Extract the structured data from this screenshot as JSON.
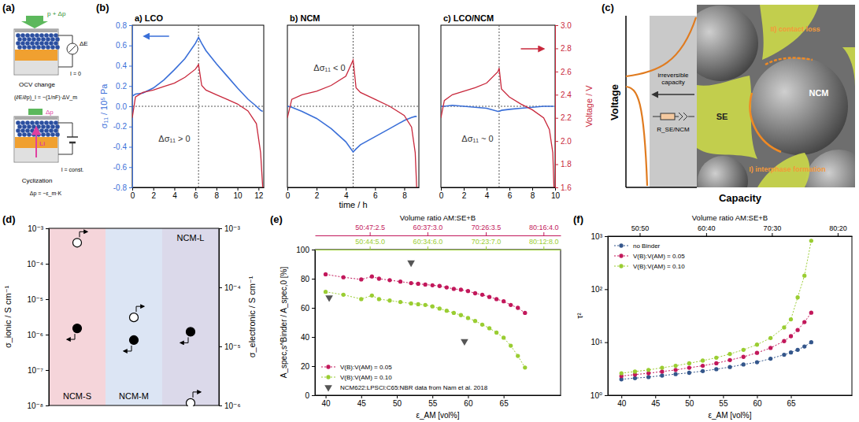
{
  "panels": {
    "a": {
      "panel_label": "(a)",
      "pressure": "p + Δp",
      "voltage": "ΔE",
      "current_open": "I = 0",
      "ocv": "OCV change",
      "formula": "(∂E/∂p)_I = −(1/nF)·ΔV_m",
      "delta_p": "Δp",
      "li": "Li",
      "current_const": "I = const.",
      "cyclization": "Cyclization",
      "pressure_change": "Δp = −ε_m·K"
    },
    "c": {
      "panel_label": "(c)",
      "ylabel": "Voltage",
      "xlabel": "Capacity",
      "band_label": "irreversible capacity",
      "resistor": "R_SE/NCM",
      "contact": "II) contact loss",
      "interphase": "I) interphase formation",
      "ncm": "NCM",
      "se": "SE"
    }
  },
  "chart_data": [
    {
      "type": "line",
      "panel_label": "(b)",
      "title": "a) LCO",
      "ylabel": "σ₁₁ / 10⁵ Pa",
      "annotation": "Δσ₁₁ > 0",
      "x": [
        0,
        0.3,
        1,
        2,
        3,
        4,
        5,
        6,
        6.3,
        6.6,
        7,
        8,
        9,
        10,
        11,
        11.8,
        12.2,
        12.4
      ],
      "series": [
        {
          "color": "#3a6fd8",
          "values": [
            0.1,
            0.12,
            0.13,
            0.18,
            0.26,
            0.36,
            0.47,
            0.62,
            0.68,
            0.62,
            0.55,
            0.42,
            0.3,
            0.18,
            0.07,
            0.0,
            -0.04,
            -0.05
          ]
        },
        {
          "color": "#c8283c",
          "axis": "y2",
          "values": [
            2.2,
            2.38,
            2.42,
            2.44,
            2.47,
            2.5,
            2.55,
            2.62,
            2.66,
            2.48,
            2.44,
            2.4,
            2.36,
            2.32,
            2.26,
            2.15,
            1.9,
            1.6
          ]
        }
      ],
      "xlim": [
        0,
        12.5
      ],
      "xticks": [
        0,
        2,
        4,
        6,
        8,
        10,
        12
      ],
      "ylim": [
        -0.8,
        0.8
      ],
      "yticks": [
        -0.8,
        -0.6,
        -0.4,
        -0.2,
        {
          "value": 0,
          "label": "0.0"
        },
        0.2,
        0.4,
        0.6,
        0.8
      ],
      "y2lim": [
        1.6,
        3.0
      ],
      "vline": 6.3,
      "hline": 0
    },
    {
      "type": "line",
      "title": "b) NCM",
      "xlabel": "time / h",
      "annotation": "Δσ₁₁ < 0",
      "x": [
        0,
        0.3,
        1,
        2,
        3,
        4,
        4.5,
        4.7,
        5,
        6,
        7,
        8,
        8.5,
        8.75,
        8.85
      ],
      "series": [
        {
          "color": "#3a6fd8",
          "values": [
            0,
            -0.01,
            -0.05,
            -0.12,
            -0.22,
            -0.35,
            -0.45,
            -0.42,
            -0.38,
            -0.3,
            -0.22,
            -0.14,
            -0.11,
            -0.1,
            -0.1
          ]
        },
        {
          "color": "#c8283c",
          "axis": "y2",
          "values": [
            2.2,
            2.36,
            2.4,
            2.43,
            2.48,
            2.56,
            2.7,
            2.46,
            2.42,
            2.36,
            2.3,
            2.22,
            2.12,
            1.9,
            1.6
          ]
        }
      ],
      "xlim": [
        0,
        9
      ],
      "xticks": [
        0,
        2,
        4,
        6,
        8
      ],
      "ylim": [
        -0.8,
        0.8
      ],
      "y2lim": [
        1.6,
        3.0
      ],
      "vline": 4.5,
      "hline": 0
    },
    {
      "type": "line",
      "title": "c) LCO/NCM",
      "y2label": "Voltage / V",
      "annotation": "Δσ₁₁ ~ 0",
      "x": [
        0,
        0.3,
        1,
        2,
        3,
        4,
        5,
        5.1,
        5.3,
        6,
        7,
        8,
        9,
        9.5,
        9.8,
        9.9
      ],
      "series": [
        {
          "color": "#3a6fd8",
          "values": [
            0,
            0,
            0.01,
            0,
            -0.01,
            -0.02,
            -0.05,
            -0.05,
            -0.04,
            -0.03,
            -0.02,
            -0.01,
            0,
            0,
            0,
            0
          ]
        },
        {
          "color": "#c8283c",
          "axis": "y2",
          "values": [
            2.2,
            2.35,
            2.4,
            2.43,
            2.46,
            2.5,
            2.6,
            2.63,
            2.45,
            2.38,
            2.32,
            2.27,
            2.2,
            2.1,
            1.9,
            1.6
          ]
        }
      ],
      "xlim": [
        0,
        10
      ],
      "xticks": [
        0,
        2,
        4,
        6,
        8,
        10
      ],
      "ylim": [
        -0.8,
        0.8
      ],
      "y2lim": [
        1.6,
        3.0
      ],
      "y2ticks": [
        1.6,
        1.8,
        {
          "value": 2.0,
          "label": "2.0"
        },
        2.2,
        2.4,
        2.6,
        2.8,
        {
          "value": 3.0,
          "label": "3.0"
        }
      ],
      "vline": 5.1,
      "hline": 0
    },
    {
      "type": "scatter",
      "panel_label": "(d)",
      "log": "y",
      "ylabel": "σ_ionic / S cm⁻¹",
      "y2label": "σ_electronic / S cm⁻¹",
      "categories": [
        "NCM-S",
        "NCM-M",
        "NCM-L"
      ],
      "series": [
        {
          "marker": "filled-circle",
          "values": [
            1.5e-06,
            7e-07,
            1.2e-06
          ]
        },
        {
          "marker": "open-circle",
          "axis": "y2",
          "values": [
            0.00057,
            3.1e-05,
            1.1e-06
          ]
        }
      ],
      "ylim": [
        1e-08,
        0.001
      ],
      "yticks": [
        {
          "value": 1e-08,
          "label": "10⁻⁸"
        },
        {
          "value": 1e-07,
          "label": "10⁻⁷"
        },
        {
          "value": 1e-06,
          "label": "10⁻⁶"
        },
        {
          "value": 1e-05,
          "label": "10⁻⁵"
        },
        {
          "value": 0.0001,
          "label": "10⁻⁴"
        },
        {
          "value": 0.001,
          "label": "10⁻³"
        }
      ],
      "y2lim": [
        1e-06,
        0.001
      ],
      "y2ticks": [
        {
          "value": 1e-06,
          "label": "10⁻⁶"
        },
        {
          "value": 1e-05,
          "label": "10⁻⁵"
        },
        {
          "value": 0.0001,
          "label": "10⁻⁴"
        },
        {
          "value": 0.001,
          "label": "10⁻³"
        }
      ]
    },
    {
      "type": "line",
      "panel_label": "(e)",
      "marker": "circle",
      "legend": "lower left",
      "xlabel": "ε_AM [vol%]",
      "ylabel": "A_spec,s^Binder / A_spec,0 [%]",
      "top_axis_title": "Volume ratio AM:SE+B",
      "xlim": [
        38.5,
        73
      ],
      "xticks": [
        40,
        45,
        50,
        55,
        60,
        65
      ],
      "ylim": [
        0,
        100
      ],
      "yticks": [
        0,
        20,
        40,
        60,
        80,
        100
      ],
      "top_axes": [
        {
          "color": "#c2185b",
          "ticks": [
            {
              "value": 46.2,
              "label": "50:47:2.5"
            },
            {
              "value": 54.3,
              "label": "60:37:3.0"
            },
            {
              "value": 62.5,
              "label": "70:26:3.5"
            },
            {
              "value": 70.6,
              "label": "80:16:4.0"
            }
          ]
        },
        {
          "color": "#9acd32",
          "ticks": [
            {
              "value": 46.2,
              "label": "50:44:5.0"
            },
            {
              "value": 54.3,
              "label": "60:34:6.0"
            },
            {
              "value": 62.5,
              "label": "70:23:7.0"
            },
            {
              "value": 70.6,
              "label": "80:12:8.0"
            }
          ]
        }
      ],
      "series": [
        {
          "name": "V(B):V(AM) = 0.05",
          "color": "#c2185b",
          "x": [
            40,
            42.5,
            45,
            46.5,
            47.5,
            49,
            50.5,
            52,
            53,
            54,
            55,
            56,
            57,
            58,
            59,
            60,
            61,
            62,
            63,
            64,
            65,
            66,
            67,
            68
          ],
          "values": [
            83,
            81,
            79.5,
            81.5,
            80,
            79,
            78,
            77,
            76.5,
            76,
            75.5,
            75,
            74,
            73,
            72.5,
            71.5,
            70,
            69,
            67.5,
            66,
            64.5,
            62,
            60,
            56.5
          ]
        },
        {
          "name": "V(B):V(AM) = 0.10",
          "color": "#9acd32",
          "x": [
            40,
            42.5,
            45,
            46.5,
            47.5,
            49,
            50.5,
            52,
            53,
            54,
            55,
            56,
            57,
            58,
            59,
            60,
            61,
            62,
            63,
            64,
            65,
            66,
            67,
            68
          ],
          "values": [
            71,
            69,
            66,
            68.5,
            66,
            65,
            64,
            63,
            62.5,
            62,
            61,
            59.5,
            58,
            56.5,
            55,
            53,
            51,
            48.5,
            46,
            43,
            39.5,
            34,
            27,
            19
          ]
        },
        {
          "name": "NCM622:LPSCl:C65:NBR data from Nam et al. 2018",
          "color": "#555555",
          "type": "scatter",
          "marker": "triangle-down",
          "x": [
            40.5,
            52,
            59.5
          ],
          "values": [
            67,
            91,
            37
          ]
        }
      ]
    },
    {
      "type": "line",
      "panel_label": "(f)",
      "marker": "circle",
      "legend": "upper left",
      "log": "y",
      "xlabel": "ε_AM [vol%]",
      "ylabel": "τ²",
      "top_axis_title": "Volume ratio AM:SE+B",
      "xlim": [
        38,
        74
      ],
      "xticks": [
        40,
        45,
        50,
        55,
        60,
        65
      ],
      "ylim": [
        1,
        1000
      ],
      "yticks": [
        {
          "value": 1,
          "label": "10⁰"
        },
        {
          "value": 10,
          "label": "10¹"
        },
        {
          "value": 100,
          "label": "10²"
        },
        {
          "value": 1000,
          "label": "10³"
        }
      ],
      "top_axes": [
        {
          "color": "#000000",
          "ticks": [
            {
              "value": 42.7,
              "label": "50:50"
            },
            {
              "value": 52.5,
              "label": "60:40"
            },
            {
              "value": 62.2,
              "label": "70:30"
            },
            {
              "value": 71.9,
              "label": "80:20"
            }
          ]
        }
      ],
      "series": [
        {
          "name": "no Binder",
          "color": "#34568b",
          "x": [
            40,
            42,
            44,
            46,
            48,
            50,
            52,
            54,
            56,
            58,
            60,
            62,
            64,
            65,
            66,
            67,
            68
          ],
          "values": [
            2.0,
            2.1,
            2.2,
            2.35,
            2.5,
            2.65,
            2.85,
            3.1,
            3.4,
            3.8,
            4.2,
            4.9,
            5.8,
            6.4,
            7.2,
            8.3,
            10
          ]
        },
        {
          "name": "V(B):V(AM) = 0.05",
          "color": "#c2185b",
          "x": [
            40,
            42,
            44,
            46,
            48,
            50,
            52,
            54,
            56,
            58,
            60,
            62,
            64,
            65,
            66,
            67,
            68
          ],
          "values": [
            2.3,
            2.45,
            2.6,
            2.8,
            3.0,
            3.3,
            3.6,
            4.0,
            4.6,
            5.3,
            6.3,
            7.8,
            10.5,
            13,
            17,
            24,
            36
          ]
        },
        {
          "name": "V(B):V(AM) = 0.10",
          "color": "#9acd32",
          "x": [
            40,
            42,
            44,
            46,
            48,
            50,
            52,
            54,
            56,
            58,
            60,
            62,
            64,
            65,
            66,
            67,
            68
          ],
          "values": [
            2.6,
            2.8,
            3.0,
            3.3,
            3.6,
            4.0,
            4.5,
            5.1,
            6.0,
            7.2,
            9.0,
            12,
            19,
            27,
            70,
            180,
            820
          ]
        }
      ]
    }
  ]
}
